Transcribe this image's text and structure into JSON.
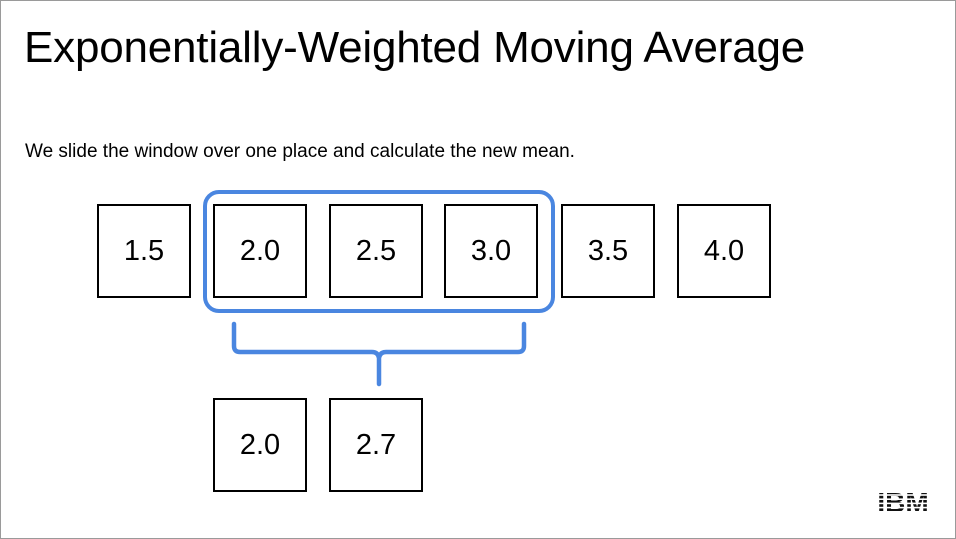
{
  "slide": {
    "title": "Exponentially-Weighted Moving Average",
    "subtitle": "We slide the window over one place and calculate the new mean."
  },
  "sequence": [
    {
      "value": "1.5"
    },
    {
      "value": "2.0"
    },
    {
      "value": "2.5"
    },
    {
      "value": "3.0"
    },
    {
      "value": "3.5"
    },
    {
      "value": "4.0"
    }
  ],
  "window": {
    "start_index": 1,
    "end_index": 3,
    "color": "#4a86e0"
  },
  "results": [
    {
      "value": "2.0"
    },
    {
      "value": "2.7"
    }
  ],
  "logo": {
    "text": "IBM",
    "icon": "ibm-logo-icon"
  }
}
